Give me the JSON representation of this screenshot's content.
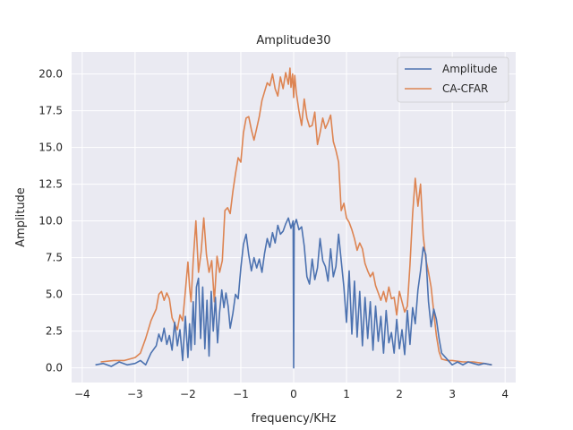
{
  "chart_data": {
    "type": "line",
    "title": "Amplitude30",
    "xlabel": "frequency/KHz",
    "ylabel": "Amplitude",
    "xlim": [
      -4.2,
      4.2
    ],
    "ylim": [
      -1.0,
      21.5
    ],
    "xticks": [
      -4,
      -3,
      -2,
      -1,
      0,
      1,
      2,
      3,
      4
    ],
    "yticks": [
      0.0,
      2.5,
      5.0,
      7.5,
      10.0,
      12.5,
      15.0,
      17.5,
      20.0
    ],
    "ytick_labels": [
      "0.0",
      "2.5",
      "5.0",
      "7.5",
      "10.0",
      "12.5",
      "15.0",
      "17.5",
      "20.0"
    ],
    "grid": true,
    "legend_position": "top-right",
    "series": [
      {
        "name": "Amplitude",
        "color": "#4c72b0",
        "x": [
          -3.75,
          -3.6,
          -3.45,
          -3.3,
          -3.15,
          -3.0,
          -2.9,
          -2.8,
          -2.7,
          -2.6,
          -2.55,
          -2.5,
          -2.45,
          -2.4,
          -2.35,
          -2.3,
          -2.25,
          -2.2,
          -2.15,
          -2.1,
          -2.05,
          -2.0,
          -1.97,
          -1.94,
          -1.9,
          -1.87,
          -1.84,
          -1.8,
          -1.76,
          -1.72,
          -1.68,
          -1.64,
          -1.6,
          -1.56,
          -1.52,
          -1.48,
          -1.44,
          -1.4,
          -1.36,
          -1.32,
          -1.28,
          -1.24,
          -1.2,
          -1.15,
          -1.1,
          -1.05,
          -1.0,
          -0.95,
          -0.9,
          -0.85,
          -0.8,
          -0.75,
          -0.7,
          -0.65,
          -0.6,
          -0.55,
          -0.5,
          -0.45,
          -0.4,
          -0.35,
          -0.3,
          -0.25,
          -0.2,
          -0.15,
          -0.1,
          -0.05,
          -0.01,
          0.0,
          0.01,
          0.05,
          0.1,
          0.15,
          0.2,
          0.25,
          0.3,
          0.35,
          0.4,
          0.45,
          0.5,
          0.55,
          0.6,
          0.65,
          0.7,
          0.75,
          0.8,
          0.85,
          0.9,
          0.95,
          1.0,
          1.05,
          1.1,
          1.15,
          1.2,
          1.25,
          1.3,
          1.35,
          1.4,
          1.45,
          1.5,
          1.55,
          1.6,
          1.65,
          1.7,
          1.75,
          1.8,
          1.85,
          1.9,
          1.95,
          2.0,
          2.05,
          2.1,
          2.15,
          2.2,
          2.25,
          2.3,
          2.35,
          2.4,
          2.45,
          2.5,
          2.55,
          2.6,
          2.65,
          2.7,
          2.75,
          2.8,
          2.9,
          3.0,
          3.1,
          3.2,
          3.3,
          3.4,
          3.5,
          3.6,
          3.75
        ],
        "y": [
          0.2,
          0.3,
          0.1,
          0.4,
          0.2,
          0.3,
          0.5,
          0.2,
          1.0,
          1.5,
          2.3,
          1.8,
          2.7,
          1.6,
          2.2,
          1.2,
          3.1,
          1.5,
          2.6,
          0.5,
          3.5,
          0.7,
          3.0,
          1.2,
          4.5,
          1.6,
          5.5,
          6.1,
          2.0,
          5.5,
          1.3,
          4.6,
          0.8,
          5.2,
          2.5,
          4.8,
          1.7,
          3.8,
          5.3,
          4.1,
          5.1,
          4.2,
          2.7,
          3.7,
          5.0,
          4.7,
          6.8,
          8.4,
          9.1,
          7.7,
          6.6,
          7.5,
          6.8,
          7.4,
          6.5,
          7.8,
          8.8,
          8.2,
          9.2,
          8.5,
          9.7,
          9.1,
          9.3,
          9.8,
          10.2,
          9.5,
          10.0,
          0.0,
          9.7,
          10.1,
          9.4,
          9.6,
          8.3,
          6.2,
          5.7,
          7.4,
          6.0,
          6.8,
          8.8,
          7.3,
          6.9,
          5.9,
          8.1,
          6.2,
          6.9,
          9.1,
          7.3,
          5.5,
          3.1,
          6.6,
          2.3,
          5.9,
          2.1,
          5.2,
          1.5,
          4.8,
          2.0,
          4.5,
          1.2,
          4.2,
          1.8,
          3.5,
          1.0,
          3.9,
          1.7,
          2.4,
          1.0,
          3.3,
          1.3,
          2.6,
          0.9,
          3.9,
          1.6,
          4.1,
          3.0,
          5.3,
          6.6,
          8.2,
          7.7,
          4.5,
          2.8,
          4.0,
          3.3,
          2.0,
          1.0,
          0.6,
          0.2,
          0.4,
          0.2,
          0.4,
          0.3,
          0.2,
          0.3,
          0.2
        ]
      },
      {
        "name": "CA-CFAR",
        "color": "#dd8452",
        "x": [
          -3.65,
          -3.4,
          -3.2,
          -3.0,
          -2.9,
          -2.8,
          -2.7,
          -2.6,
          -2.55,
          -2.5,
          -2.45,
          -2.4,
          -2.35,
          -2.3,
          -2.25,
          -2.2,
          -2.15,
          -2.1,
          -2.05,
          -2.0,
          -1.97,
          -1.94,
          -1.9,
          -1.85,
          -1.8,
          -1.75,
          -1.7,
          -1.65,
          -1.6,
          -1.55,
          -1.5,
          -1.45,
          -1.4,
          -1.35,
          -1.3,
          -1.25,
          -1.2,
          -1.15,
          -1.1,
          -1.05,
          -1.0,
          -0.95,
          -0.9,
          -0.85,
          -0.8,
          -0.75,
          -0.7,
          -0.65,
          -0.6,
          -0.55,
          -0.5,
          -0.45,
          -0.4,
          -0.35,
          -0.3,
          -0.25,
          -0.2,
          -0.15,
          -0.1,
          -0.07,
          -0.05,
          -0.02,
          0.0,
          0.02,
          0.05,
          0.1,
          0.15,
          0.2,
          0.25,
          0.3,
          0.35,
          0.4,
          0.45,
          0.5,
          0.55,
          0.6,
          0.65,
          0.7,
          0.75,
          0.8,
          0.85,
          0.9,
          0.95,
          1.0,
          1.05,
          1.1,
          1.15,
          1.2,
          1.25,
          1.3,
          1.35,
          1.4,
          1.45,
          1.5,
          1.55,
          1.6,
          1.65,
          1.7,
          1.75,
          1.8,
          1.85,
          1.9,
          1.95,
          2.0,
          2.05,
          2.1,
          2.15,
          2.2,
          2.25,
          2.3,
          2.35,
          2.4,
          2.45,
          2.5,
          2.55,
          2.6,
          2.65,
          2.7,
          2.75,
          2.8,
          2.9,
          3.0,
          3.2,
          3.4,
          3.6,
          3.75
        ],
        "y": [
          0.4,
          0.5,
          0.5,
          0.7,
          1.0,
          2.0,
          3.2,
          4.0,
          5.0,
          5.2,
          4.6,
          5.1,
          4.7,
          3.4,
          3.0,
          2.6,
          3.6,
          3.2,
          5.2,
          7.2,
          5.5,
          4.5,
          7.3,
          10.0,
          6.5,
          7.9,
          10.2,
          7.7,
          6.5,
          7.3,
          4.5,
          7.6,
          6.5,
          7.3,
          10.7,
          10.9,
          10.5,
          12.0,
          13.2,
          14.3,
          14.0,
          16.0,
          17.0,
          17.1,
          16.2,
          15.5,
          16.3,
          17.1,
          18.2,
          18.8,
          19.4,
          19.2,
          20.0,
          19.0,
          18.5,
          19.8,
          19.0,
          20.1,
          19.3,
          20.4,
          19.1,
          20.0,
          18.4,
          19.9,
          18.7,
          17.5,
          16.5,
          18.3,
          17.0,
          16.4,
          16.5,
          17.4,
          15.2,
          16.0,
          17.0,
          16.3,
          16.7,
          17.2,
          15.4,
          14.8,
          14.0,
          10.7,
          11.2,
          10.2,
          9.9,
          9.4,
          8.8,
          8.0,
          8.5,
          8.1,
          7.1,
          6.6,
          6.2,
          6.5,
          5.6,
          5.1,
          4.6,
          5.2,
          4.5,
          5.5,
          4.7,
          4.8,
          3.6,
          5.2,
          4.5,
          3.8,
          4.2,
          7.0,
          10.5,
          12.9,
          11.0,
          12.5,
          9.0,
          7.4,
          6.5,
          5.5,
          3.8,
          2.2,
          1.1,
          0.6,
          0.5,
          0.5,
          0.4,
          0.4,
          0.3,
          0.2
        ]
      }
    ]
  }
}
